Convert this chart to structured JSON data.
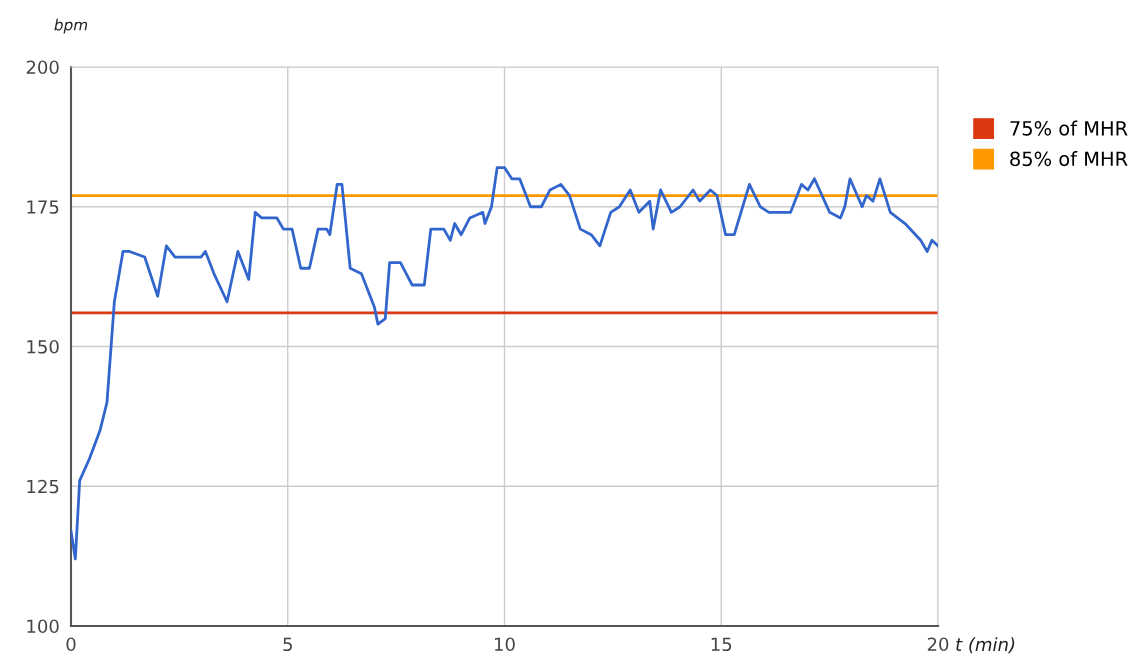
{
  "chart_data": {
    "type": "line",
    "xlabel": "t (min)",
    "ylabel": "bpm",
    "xlim": [
      0,
      20
    ],
    "ylim": [
      100,
      200
    ],
    "xticks": [
      0,
      5,
      10,
      15,
      20
    ],
    "yticks": [
      100,
      125,
      150,
      175,
      200
    ],
    "grid": true,
    "legend": "right",
    "marker": "none",
    "line_style": "solid",
    "series": [
      {
        "color": "#3366cc",
        "x": [
          0,
          0.1,
          0.2,
          0.43,
          0.67,
          0.83,
          1.0,
          1.2,
          1.35,
          1.7,
          2.0,
          2.2,
          2.4,
          3.0,
          3.1,
          3.3,
          3.6,
          3.85,
          4.1,
          4.25,
          4.4,
          4.75,
          4.9,
          5.1,
          5.3,
          5.5,
          5.7,
          5.9,
          5.97,
          6.14,
          6.25,
          6.44,
          6.7,
          7.0,
          7.08,
          7.25,
          7.35,
          7.6,
          7.87,
          8.15,
          8.3,
          8.6,
          8.75,
          8.85,
          9.0,
          9.2,
          9.5,
          9.55,
          9.7,
          9.83,
          10.0,
          10.17,
          10.35,
          10.6,
          10.85,
          11.05,
          11.3,
          11.5,
          11.75,
          12.0,
          12.2,
          12.45,
          12.65,
          12.9,
          13.1,
          13.35,
          13.43,
          13.6,
          13.85,
          14.05,
          14.35,
          14.5,
          14.75,
          14.9,
          15.1,
          15.3,
          15.65,
          15.9,
          16.1,
          16.4,
          16.6,
          16.85,
          17.0,
          17.15,
          17.5,
          17.75,
          17.85,
          17.97,
          18.25,
          18.35,
          18.5,
          18.66,
          18.9,
          19.24,
          19.6,
          19.75,
          19.86,
          20
        ],
        "values": [
          117,
          112,
          126,
          130,
          135,
          140,
          158,
          167,
          167,
          166,
          159,
          168,
          166,
          166,
          167,
          163,
          158,
          167,
          162,
          174,
          173,
          173,
          171,
          171,
          164,
          164,
          171,
          171,
          170,
          179,
          179,
          164,
          163,
          157,
          154,
          155,
          165,
          165,
          161,
          161,
          171,
          171,
          169,
          172,
          170,
          173,
          174,
          172,
          175,
          182,
          182,
          180,
          180,
          175,
          175,
          178,
          179,
          177,
          171,
          170,
          168,
          174,
          175,
          178,
          174,
          176,
          171,
          178,
          174,
          175,
          178,
          176,
          178,
          177,
          170,
          170,
          179,
          175,
          174,
          174,
          174,
          179,
          178,
          180,
          174,
          173,
          175,
          180,
          175,
          177,
          176,
          180,
          174,
          172,
          169,
          167,
          169,
          168
        ]
      }
    ],
    "ref_lines": [
      {
        "axis": "y",
        "value": 156,
        "label": "75% of MHR",
        "color": "#dc3912"
      },
      {
        "axis": "y",
        "value": 177,
        "label": "85% of MHR",
        "color": "#ff9900"
      }
    ]
  }
}
